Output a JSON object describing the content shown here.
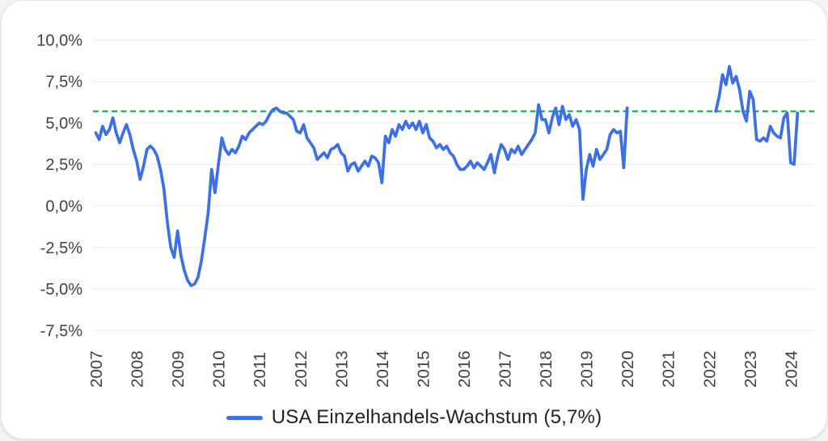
{
  "chart_data": {
    "type": "line",
    "title": "",
    "grid": "horizontal",
    "y_axis": {
      "tick_labels": [
        "10,0%",
        "7,5%",
        "5,0%",
        "2,5%",
        "0,0%",
        "-2,5%",
        "-5,0%",
        "-7,5%"
      ],
      "tick_values": [
        10,
        7.5,
        5,
        2.5,
        0,
        -2.5,
        -5,
        -7.5
      ],
      "range": [
        -7.5,
        10
      ]
    },
    "x_axis": {
      "tick_labels": [
        "2007",
        "2008",
        "2009",
        "2010",
        "2011",
        "2012",
        "2013",
        "2014",
        "2015",
        "2016",
        "2017",
        "2018",
        "2019",
        "2020",
        "2021",
        "2022",
        "2023",
        "2024"
      ],
      "unit": "year",
      "label_rotation_deg": -90
    },
    "reference_line": {
      "value": 5.7,
      "label": "5,7%",
      "style": "dashed",
      "color": "#00a63f"
    },
    "series": [
      {
        "name": "USA Einzelhandels-Wachstum (5,7%)",
        "color": "#3c70e4",
        "frequency": "monthly",
        "start_month": "2007-01",
        "note_gap": "no data Feb 2020 - Feb 2022",
        "values": [
          4.4,
          4.0,
          4.8,
          4.3,
          4.6,
          5.3,
          4.4,
          3.8,
          4.4,
          4.9,
          4.3,
          3.4,
          2.7,
          1.6,
          2.4,
          3.4,
          3.6,
          3.4,
          3.0,
          2.2,
          1.0,
          -1.0,
          -2.5,
          -3.1,
          -1.5,
          -3.0,
          -3.9,
          -4.5,
          -4.8,
          -4.7,
          -4.3,
          -3.3,
          -1.9,
          -0.4,
          2.2,
          0.8,
          2.5,
          4.1,
          3.4,
          3.1,
          3.4,
          3.2,
          3.6,
          4.2,
          4.0,
          4.4,
          4.6,
          4.8,
          5.0,
          4.9,
          5.1,
          5.5,
          5.8,
          5.9,
          5.7,
          5.6,
          5.6,
          5.4,
          5.2,
          4.5,
          4.4,
          4.9,
          4.1,
          3.8,
          3.5,
          2.8,
          3.0,
          3.2,
          2.9,
          3.4,
          3.5,
          3.7,
          3.2,
          3.0,
          2.1,
          2.5,
          2.6,
          2.1,
          2.4,
          2.7,
          2.4,
          3.0,
          2.9,
          2.6,
          1.4,
          4.2,
          3.8,
          4.6,
          4.2,
          4.9,
          4.6,
          5.1,
          4.7,
          5.0,
          4.6,
          5.1,
          4.4,
          4.9,
          4.1,
          3.9,
          3.5,
          3.7,
          3.4,
          3.6,
          3.2,
          3.0,
          2.5,
          2.2,
          2.2,
          2.4,
          2.7,
          2.3,
          2.6,
          2.4,
          2.2,
          2.6,
          3.1,
          2.0,
          3.0,
          3.7,
          3.4,
          2.8,
          3.4,
          3.2,
          3.6,
          3.1,
          3.4,
          3.7,
          4.0,
          4.4,
          6.1,
          5.2,
          5.2,
          4.4,
          5.3,
          5.9,
          4.9,
          6.0,
          5.2,
          5.5,
          4.8,
          5.2,
          4.6,
          0.4,
          2.2,
          3.1,
          2.4,
          3.4,
          2.8,
          3.1,
          3.4,
          4.3,
          4.6,
          4.4,
          4.5,
          2.3,
          5.9,
          null,
          null,
          null,
          null,
          null,
          null,
          null,
          null,
          null,
          null,
          null,
          null,
          null,
          null,
          null,
          null,
          null,
          null,
          null,
          null,
          null,
          null,
          null,
          null,
          null,
          5.7,
          6.6,
          7.9,
          7.3,
          8.4,
          7.4,
          7.8,
          7.0,
          5.7,
          5.1,
          6.9,
          6.4,
          4.0,
          3.9,
          4.1,
          3.9,
          4.8,
          4.4,
          4.2,
          4.1,
          5.3,
          5.6,
          2.6,
          2.5,
          5.6
        ]
      }
    ],
    "legend": {
      "position": "bottom",
      "items": [
        {
          "label": "USA Einzelhandels-Wachstum (5,7%)",
          "color": "#3c70e4"
        }
      ]
    }
  },
  "colors": {
    "grid": "#efefef",
    "axis_text": "#3f4245",
    "legend_text": "#1f2126",
    "card_bg": "#ffffff",
    "line": "#3c70e4",
    "reference": "#00a63f"
  }
}
